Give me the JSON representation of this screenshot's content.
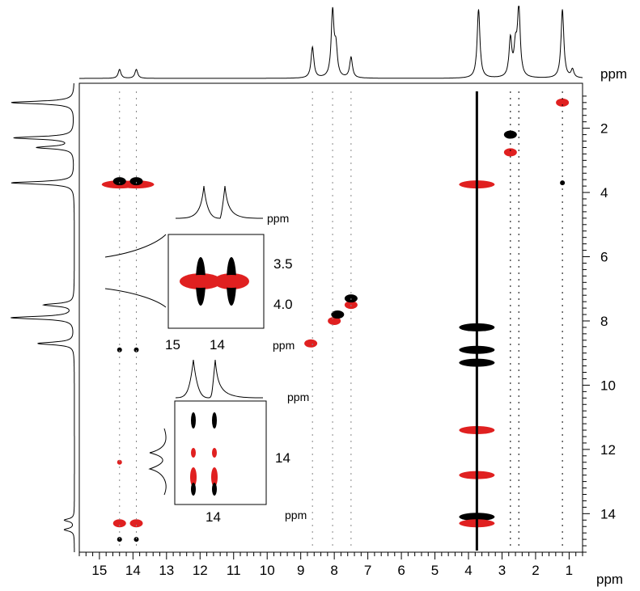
{
  "chart_data": {
    "type": "scatter",
    "description_type": "2D NMR spectrum (contour plot) with 1D projections and two zoomed insets",
    "x_axis": {
      "unit": "ppm",
      "reversed": true,
      "range": [
        15.6,
        0.6
      ],
      "ticks": [
        15,
        14,
        13,
        12,
        11,
        10,
        9,
        8,
        7,
        6,
        5,
        4,
        3,
        2,
        1
      ]
    },
    "y_axis": {
      "unit": "ppm",
      "reversed": true,
      "range": [
        0.6,
        15.2
      ],
      "ticks": [
        2,
        4,
        6,
        8,
        10,
        12,
        14
      ]
    },
    "colors": {
      "positive": "#000000",
      "negative": "#e02020"
    },
    "projection_peaks_x": [
      {
        "ppm": 14.4,
        "height": 0.13
      },
      {
        "ppm": 13.9,
        "height": 0.13
      },
      {
        "ppm": 8.65,
        "height": 0.45
      },
      {
        "ppm": 8.05,
        "height": 0.95
      },
      {
        "ppm": 7.95,
        "height": 0.4
      },
      {
        "ppm": 7.5,
        "height": 0.3
      },
      {
        "ppm": 3.7,
        "height": 1.0
      },
      {
        "ppm": 2.75,
        "height": 0.55
      },
      {
        "ppm": 2.6,
        "height": 0.4
      },
      {
        "ppm": 2.5,
        "height": 1.0
      },
      {
        "ppm": 1.2,
        "height": 1.0
      },
      {
        "ppm": 0.9,
        "height": 0.12
      }
    ],
    "projection_peaks_y": [
      {
        "ppm": 1.2,
        "height": 0.95
      },
      {
        "ppm": 2.3,
        "height": 0.9
      },
      {
        "ppm": 2.6,
        "height": 0.55
      },
      {
        "ppm": 3.7,
        "height": 0.95
      },
      {
        "ppm": 7.5,
        "height": 0.45
      },
      {
        "ppm": 7.9,
        "height": 0.95
      },
      {
        "ppm": 8.7,
        "height": 0.55
      },
      {
        "ppm": 14.2,
        "height": 0.15
      },
      {
        "ppm": 14.5,
        "height": 0.15
      }
    ],
    "peaks": [
      {
        "x": 14.4,
        "y": 3.75,
        "color": "negative",
        "size": 3
      },
      {
        "x": 13.9,
        "y": 3.75,
        "color": "negative",
        "size": 3
      },
      {
        "x": 14.4,
        "y": 3.65,
        "color": "positive",
        "size": 2
      },
      {
        "x": 13.9,
        "y": 3.65,
        "color": "positive",
        "size": 2
      },
      {
        "x": 14.4,
        "y": 8.9,
        "color": "positive",
        "size": 1
      },
      {
        "x": 13.9,
        "y": 8.9,
        "color": "positive",
        "size": 1
      },
      {
        "x": 14.4,
        "y": 12.4,
        "color": "negative",
        "size": 1
      },
      {
        "x": 14.4,
        "y": 14.3,
        "color": "negative",
        "size": 2
      },
      {
        "x": 13.9,
        "y": 14.3,
        "color": "negative",
        "size": 2
      },
      {
        "x": 14.4,
        "y": 14.8,
        "color": "positive",
        "size": 1
      },
      {
        "x": 13.9,
        "y": 14.8,
        "color": "positive",
        "size": 1
      },
      {
        "x": 8.7,
        "y": 8.7,
        "color": "negative",
        "size": 2
      },
      {
        "x": 8.0,
        "y": 8.0,
        "color": "negative",
        "size": 2
      },
      {
        "x": 7.9,
        "y": 7.8,
        "color": "positive",
        "size": 2
      },
      {
        "x": 7.5,
        "y": 7.5,
        "color": "negative",
        "size": 2
      },
      {
        "x": 7.5,
        "y": 7.3,
        "color": "positive",
        "size": 2
      },
      {
        "x": 3.75,
        "y": 3.75,
        "color": "negative",
        "size": 3
      },
      {
        "x": 3.75,
        "y": 8.2,
        "color": "positive",
        "size": 3
      },
      {
        "x": 3.75,
        "y": 8.9,
        "color": "positive",
        "size": 3
      },
      {
        "x": 3.75,
        "y": 9.3,
        "color": "positive",
        "size": 3
      },
      {
        "x": 3.75,
        "y": 11.4,
        "color": "negative",
        "size": 3
      },
      {
        "x": 3.75,
        "y": 12.8,
        "color": "negative",
        "size": 3
      },
      {
        "x": 3.75,
        "y": 14.1,
        "color": "positive",
        "size": 3
      },
      {
        "x": 3.75,
        "y": 14.3,
        "color": "negative",
        "size": 3
      },
      {
        "x": 2.75,
        "y": 2.75,
        "color": "negative",
        "size": 2
      },
      {
        "x": 2.75,
        "y": 2.2,
        "color": "positive",
        "size": 2
      },
      {
        "x": 1.2,
        "y": 1.2,
        "color": "negative",
        "size": 2
      },
      {
        "x": 1.2,
        "y": 3.7,
        "color": "positive",
        "size": 1
      }
    ]
  },
  "main_axes": {
    "x_unit": "ppm",
    "y_unit": "ppm"
  },
  "inset_top": {
    "x_ticks": [
      "15",
      "14"
    ],
    "y_ticks": [
      "3.5",
      "4.0"
    ],
    "unit": "ppm"
  },
  "inset_bottom": {
    "x_ticks": [
      "14"
    ],
    "y_ticks": [
      "14"
    ],
    "unit": "ppm"
  }
}
